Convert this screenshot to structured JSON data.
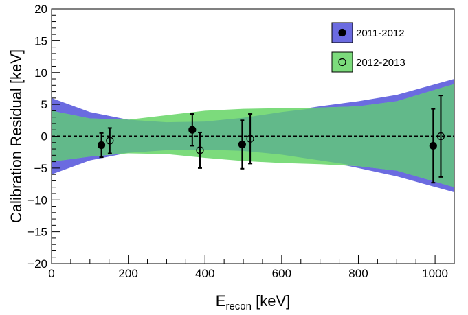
{
  "chart_data": {
    "type": "scatter",
    "xlabel_main": "E",
    "xlabel_sub": "recon",
    "xlabel_unit": " [keV]",
    "ylabel": "Calibration Residual [keV]",
    "xlim": [
      0,
      1050
    ],
    "ylim": [
      -20,
      20
    ],
    "x_ticks": [
      0,
      200,
      400,
      600,
      800,
      1000
    ],
    "y_ticks": [
      -20,
      -15,
      -10,
      -5,
      0,
      5,
      10,
      15,
      20
    ],
    "x_tick_labels": [
      "0",
      "200",
      "400",
      "600",
      "800",
      "1000"
    ],
    "y_tick_labels": [
      "−20",
      "−15",
      "−10",
      "−5",
      "0",
      "5",
      "10",
      "15",
      "20"
    ],
    "reference_line": 0,
    "series": [
      {
        "name": "2011-2012",
        "marker": "filled-circle",
        "band_color": "#6b6be0",
        "points": [
          {
            "x": 130,
            "y": -1.4,
            "err_low": 1.9,
            "err_high": 1.9
          },
          {
            "x": 367,
            "y": 1.0,
            "err_low": 2.5,
            "err_high": 2.5
          },
          {
            "x": 497,
            "y": -1.3,
            "err_low": 3.8,
            "err_high": 3.8
          },
          {
            "x": 995,
            "y": -1.5,
            "err_low": 5.8,
            "err_high": 5.8
          }
        ],
        "band": [
          {
            "x": 0,
            "low": -6.0,
            "high": 6.0
          },
          {
            "x": 100,
            "low": -3.8,
            "high": 3.8
          },
          {
            "x": 200,
            "low": -2.6,
            "high": 2.6
          },
          {
            "x": 300,
            "low": -2.2,
            "high": 2.2
          },
          {
            "x": 400,
            "low": -2.1,
            "high": 2.3
          },
          {
            "x": 500,
            "low": -2.3,
            "high": 2.9
          },
          {
            "x": 600,
            "low": -2.9,
            "high": 3.8
          },
          {
            "x": 700,
            "low": -3.8,
            "high": 4.7
          },
          {
            "x": 800,
            "low": -5.0,
            "high": 5.5
          },
          {
            "x": 900,
            "low": -6.3,
            "high": 6.5
          },
          {
            "x": 1050,
            "low": -8.8,
            "high": 9.0
          }
        ]
      },
      {
        "name": "2012-2013",
        "marker": "open-circle",
        "band_color": "#7cdb7c",
        "points": [
          {
            "x": 152,
            "y": -0.7,
            "err_low": 2.0,
            "err_high": 2.0
          },
          {
            "x": 387,
            "y": -2.2,
            "err_low": 2.8,
            "err_high": 2.8
          },
          {
            "x": 518,
            "y": -0.4,
            "err_low": 3.9,
            "err_high": 3.9
          },
          {
            "x": 1015,
            "y": 0.0,
            "err_low": 6.4,
            "err_high": 6.4
          }
        ],
        "band": [
          {
            "x": 0,
            "low": -4.0,
            "high": 4.0
          },
          {
            "x": 100,
            "low": -3.2,
            "high": 2.8
          },
          {
            "x": 200,
            "low": -2.7,
            "high": 2.6
          },
          {
            "x": 300,
            "low": -2.8,
            "high": 3.3
          },
          {
            "x": 400,
            "low": -3.4,
            "high": 4.0
          },
          {
            "x": 500,
            "low": -3.9,
            "high": 4.3
          },
          {
            "x": 600,
            "low": -4.2,
            "high": 4.4
          },
          {
            "x": 700,
            "low": -4.4,
            "high": 4.5
          },
          {
            "x": 800,
            "low": -4.7,
            "high": 4.7
          },
          {
            "x": 900,
            "low": -5.4,
            "high": 5.5
          },
          {
            "x": 1050,
            "low": -8.0,
            "high": 8.2
          }
        ]
      }
    ],
    "legend": {
      "placement": "top-right",
      "entries": [
        {
          "label": "2011-2012",
          "swatch_color": "#6b6be0",
          "marker": "filled-circle"
        },
        {
          "label": "2012-2013",
          "swatch_color": "#7cdb7c",
          "marker": "open-circle"
        }
      ]
    },
    "colors": {
      "overlap": "#62b98a",
      "reference_line": "#000000"
    }
  }
}
